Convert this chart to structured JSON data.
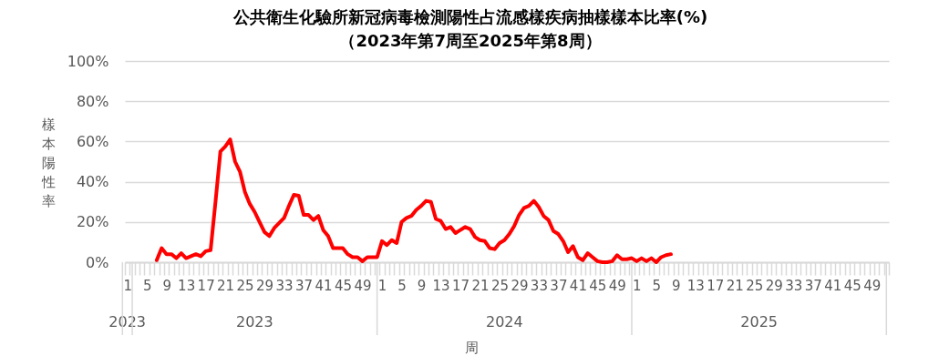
{
  "chart_data": {
    "type": "line",
    "title": "公共衛生化驗所新冠病毒檢測陽性占流感樣疾病抽樣樣本比率(%)",
    "subtitle": "（2023年第7周至2025年第8周）",
    "xlabel": "周",
    "ylabel": "樣本陽性率",
    "annotations": [
      "2023",
      "2023",
      "2024",
      "2025"
    ],
    "categories": [
      "1",
      null,
      null,
      null,
      "5",
      null,
      null,
      null,
      "9",
      null,
      null,
      null,
      "13",
      null,
      null,
      null,
      "17",
      null,
      null,
      null,
      "21",
      null,
      null,
      null,
      "25",
      null,
      null,
      null,
      "29",
      null,
      null,
      null,
      "33",
      null,
      null,
      null,
      "37",
      null,
      null,
      null,
      "41",
      null,
      null,
      null,
      "45",
      null,
      null,
      null,
      "49",
      null,
      null,
      null,
      "1",
      null,
      null,
      null,
      "5",
      null,
      null,
      null,
      "9",
      null,
      null,
      null,
      "13",
      null,
      null,
      null,
      "17",
      null,
      null,
      null,
      "21",
      null,
      null,
      null,
      "25",
      null,
      null,
      null,
      "29",
      null,
      null,
      null,
      "33",
      null,
      null,
      null,
      "37",
      null,
      null,
      null,
      "41",
      null,
      null,
      null,
      "45",
      null,
      null,
      null,
      "49",
      null,
      null,
      null,
      "1",
      null,
      null,
      null,
      "5",
      null,
      null,
      null,
      "9",
      null,
      null,
      null,
      "13",
      null,
      null,
      null,
      "17",
      null,
      null,
      null,
      "21",
      null,
      null,
      null,
      "25",
      null,
      null,
      null,
      "29",
      null,
      null,
      null,
      "33",
      null,
      null,
      null,
      "37",
      null,
      null,
      null,
      "41",
      null,
      null,
      null,
      "45",
      null,
      null,
      null,
      "49",
      null,
      null,
      null
    ],
    "series": [
      {
        "color": "#ff0000",
        "values": [
          null,
          null,
          null,
          null,
          null,
          null,
          1,
          7,
          4,
          4,
          2,
          4.5,
          2,
          3,
          4,
          3,
          5.5,
          6,
          30,
          55,
          57.5,
          61,
          50,
          45,
          35,
          29,
          25,
          20,
          15,
          13,
          17,
          19.5,
          22,
          28,
          33.5,
          33,
          23.5,
          23.5,
          21,
          23,
          16,
          13,
          7,
          7,
          7,
          4,
          2.5,
          2.5,
          0.5,
          2.5,
          2.5,
          2.5,
          10.5,
          8.5,
          11,
          9.5,
          20,
          22,
          23,
          26,
          28,
          30.5,
          30,
          21.5,
          20.5,
          16.5,
          17.5,
          14.5,
          16,
          17.5,
          16.5,
          12.5,
          11,
          10.5,
          7,
          6.5,
          9.5,
          11,
          14,
          18,
          23.5,
          27,
          28,
          30.5,
          27.5,
          23,
          21,
          15.5,
          14,
          10.5,
          5,
          8,
          2.5,
          1,
          4.5,
          2.5,
          0.5,
          0,
          0,
          0.5,
          3.5,
          1.5,
          1.5,
          2,
          0.5,
          2,
          0.5,
          2,
          0,
          2.5,
          3.5,
          4,
          null,
          null,
          null,
          null,
          null,
          null,
          null,
          null,
          null,
          null,
          null,
          null,
          null,
          null,
          null,
          null,
          null,
          null,
          null,
          null,
          null,
          null,
          null,
          null,
          null,
          null,
          null,
          null,
          null,
          null,
          null,
          null,
          null,
          null,
          null,
          null,
          null,
          null,
          null,
          null,
          null,
          null,
          null,
          null
        ]
      }
    ],
    "ylim": [
      0,
      100
    ],
    "yticks": [
      {
        "value": 0,
        "label": "0%"
      },
      {
        "value": 20,
        "label": "20%"
      },
      {
        "value": 40,
        "label": "40%"
      },
      {
        "value": 60,
        "label": "60%"
      },
      {
        "value": 80,
        "label": "80%"
      },
      {
        "value": 100,
        "label": "100%"
      }
    ],
    "grid": "y",
    "line_style": "solid"
  }
}
